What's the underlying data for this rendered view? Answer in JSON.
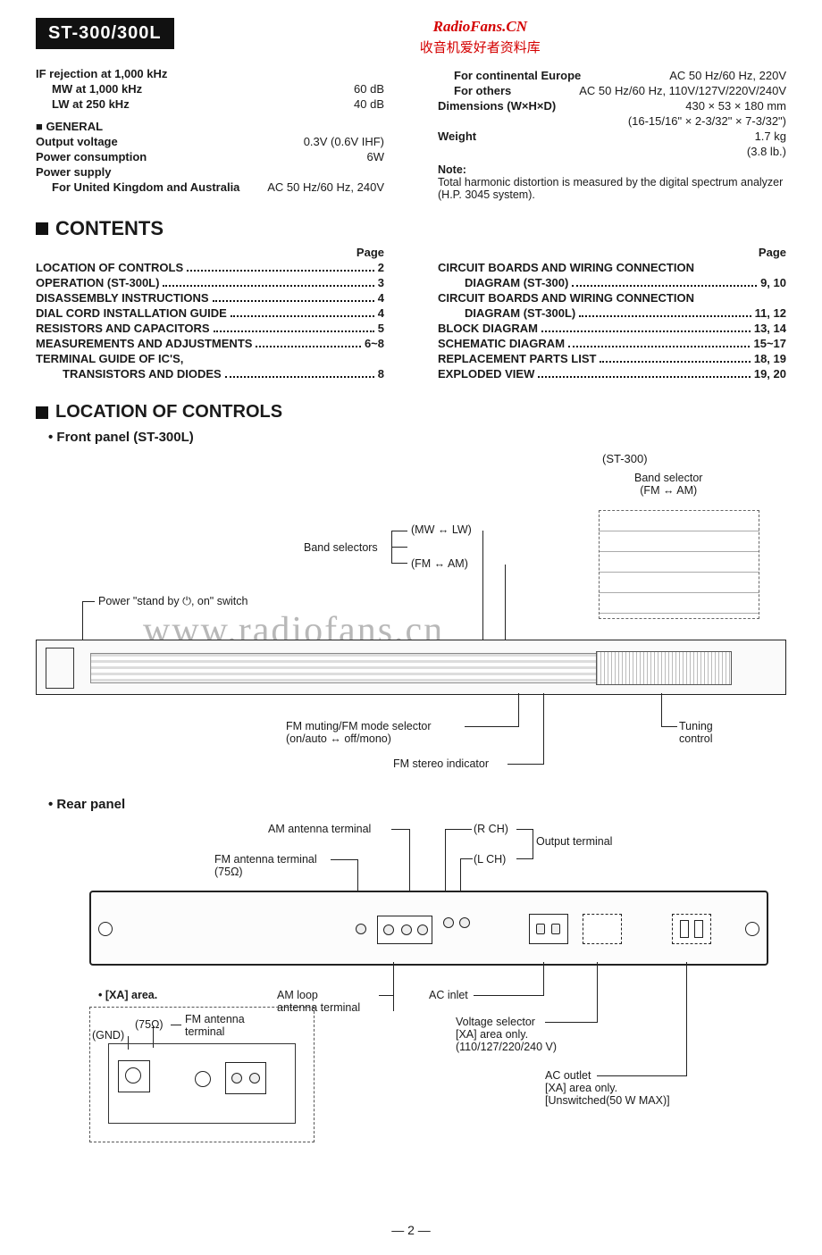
{
  "header": {
    "model": "ST-300/300L",
    "watermark_site": "RadioFans.CN",
    "watermark_cn": "收音机爱好者资料库",
    "watermark_big": "www.radiofans.cn"
  },
  "specs_left": {
    "if_rejection": "IF rejection at 1,000 kHz",
    "mw_label": "MW at 1,000 kHz",
    "mw_val": "60 dB",
    "lw_label": "LW at 250 kHz",
    "lw_val": "40 dB",
    "general_hdr": "■ GENERAL",
    "out_v_label": "Output voltage",
    "out_v_val": "0.3V (0.6V IHF)",
    "pc_label": "Power consumption",
    "pc_val": "6W",
    "ps_label": "Power supply",
    "uk_label": "For United Kingdom and Australia",
    "uk_val": "AC 50 Hz/60 Hz, 240V"
  },
  "specs_right": {
    "ce_label": "For continental Europe",
    "ce_val": "AC 50 Hz/60 Hz, 220V",
    "oth_label": "For others",
    "oth_val": "AC 50 Hz/60 Hz, 110V/127V/220V/240V",
    "dim_label": "Dimensions (W×H×D)",
    "dim_val": "430 × 53 × 180 mm",
    "dim_imp": "(16-15/16\" × 2-3/32\" × 7-3/32\")",
    "wt_label": "Weight",
    "wt_val": "1.7 kg",
    "wt_imp": "(3.8 lb.)",
    "note_hdr": "Note:",
    "note_body": "Total harmonic distortion is measured by the digital spectrum analyzer (H.P. 3045 system)."
  },
  "contents_hdr": "CONTENTS",
  "page_word": "Page",
  "toc_left": [
    {
      "label": "LOCATION OF CONTROLS",
      "page": "2"
    },
    {
      "label": "OPERATION (ST-300L)",
      "page": "3"
    },
    {
      "label": "DISASSEMBLY INSTRUCTIONS",
      "page": "4"
    },
    {
      "label": "DIAL CORD INSTALLATION GUIDE",
      "page": "4"
    },
    {
      "label": "RESISTORS AND CAPACITORS",
      "page": "5"
    },
    {
      "label": "MEASUREMENTS AND ADJUSTMENTS",
      "page": "6~8"
    },
    {
      "label": "TERMINAL GUIDE OF IC'S,",
      "page": ""
    },
    {
      "label": "TRANSISTORS AND DIODES",
      "page": "8",
      "sub": true
    }
  ],
  "toc_right": [
    {
      "label": "CIRCUIT BOARDS AND WIRING CONNECTION",
      "page": ""
    },
    {
      "label": "DIAGRAM (ST-300)",
      "page": "9, 10",
      "sub": true
    },
    {
      "label": "CIRCUIT BOARDS AND WIRING CONNECTION",
      "page": ""
    },
    {
      "label": "DIAGRAM (ST-300L)",
      "page": "11, 12",
      "sub": true
    },
    {
      "label": "BLOCK DIAGRAM",
      "page": "13, 14"
    },
    {
      "label": "SCHEMATIC DIAGRAM",
      "page": "15~17"
    },
    {
      "label": "REPLACEMENT PARTS LIST",
      "page": "18, 19"
    },
    {
      "label": "EXPLODED VIEW",
      "page": "19, 20"
    }
  ],
  "loc_hdr": "LOCATION OF CONTROLS",
  "front_sub": "Front panel (ST-300L)",
  "rear_sub": "Rear panel",
  "front_callouts": {
    "inset_title": "(ST-300)",
    "inset_band": "Band selector\n(FM ↔ AM)",
    "band_sel": "Band selectors",
    "mw_lw": "(MW ↔ LW)",
    "fm_am": "(FM ↔ AM)",
    "power": "Power \"stand by ⏻, on\" switch",
    "fm_mute": "FM muting/FM mode selector\n(on/auto ↔ off/mono)",
    "fm_stereo": "FM stereo indicator",
    "tuning": "Tuning\ncontrol"
  },
  "rear_callouts": {
    "am_ant": "AM antenna terminal",
    "fm_ant": "FM antenna terminal\n(75Ω)",
    "rch": "(R CH)",
    "lch": "(L CH)",
    "out_term": "Output terminal",
    "xa_hdr": "• [XA] area.",
    "xa_75": "(75Ω)",
    "xa_fm": "FM antenna\nterminal",
    "xa_gnd": "(GND)",
    "am_loop": "AM loop\nantenna terminal",
    "ac_inlet": "AC inlet",
    "volt_sel": "Voltage selector\n[XA] area only.\n(110/127/220/240 V)",
    "ac_out": "AC outlet\n[XA] area only.\n[Unswitched(50 W MAX)]"
  },
  "page_number": "— 2 —"
}
